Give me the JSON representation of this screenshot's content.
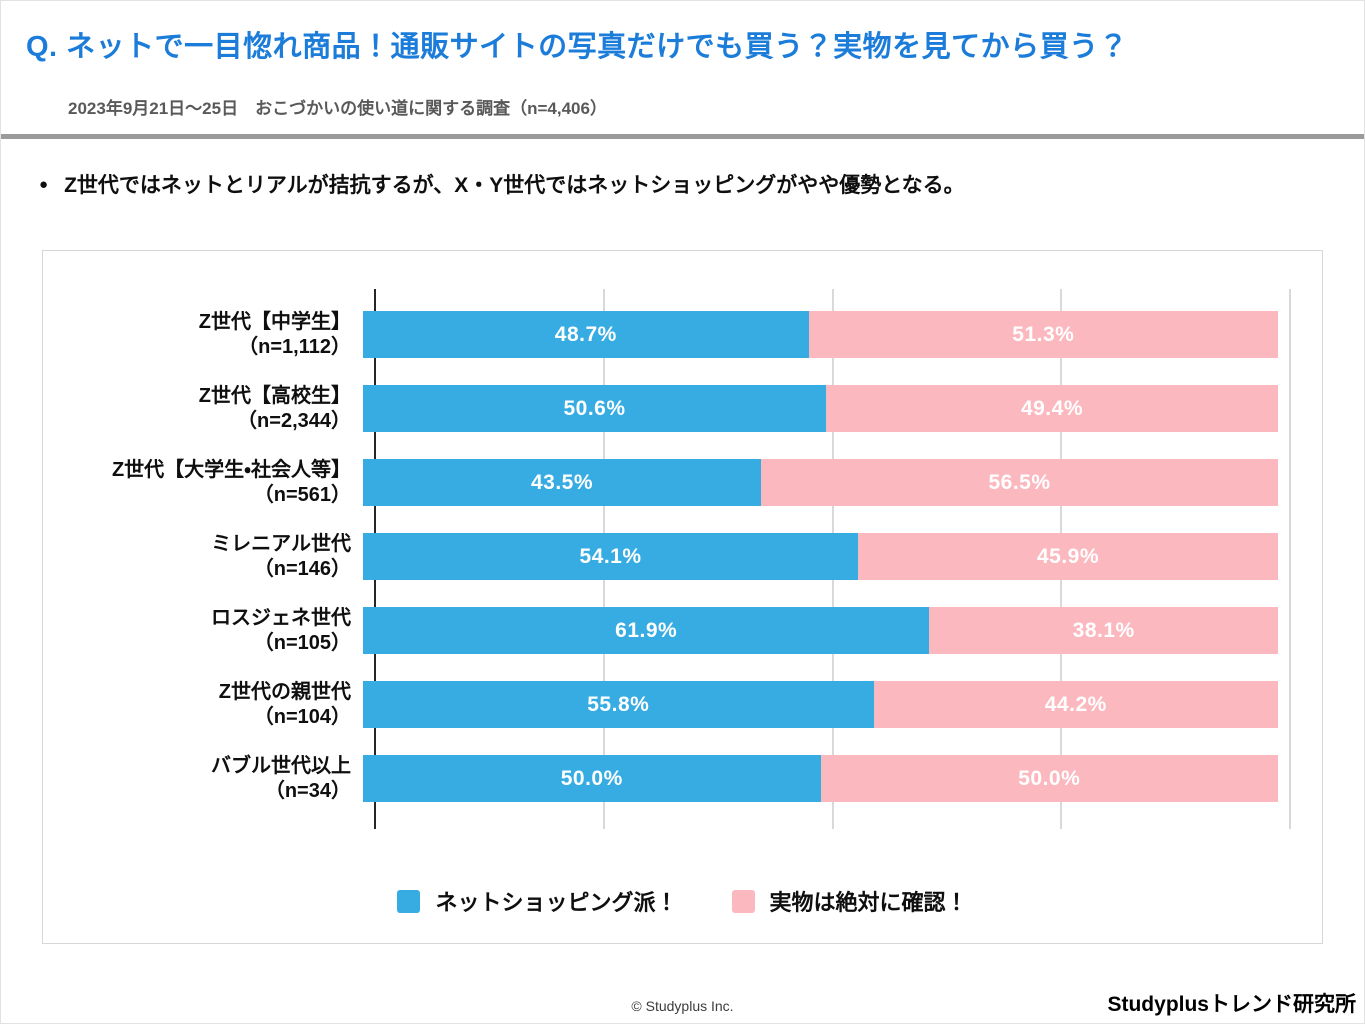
{
  "header": {
    "title": "Q. ネットで一目惚れ商品！通販サイトの写真だけでも買う？実物を見てから買う？",
    "subtitle": "2023年9月21日～25日　おこづかいの使い道に関する調査（n=4,406）"
  },
  "summary": {
    "bullet": "●",
    "text": "Z世代ではネットとリアルが拮抗するが、X・Y世代ではネットショッピングがやや優勢となる。"
  },
  "chart_data": {
    "type": "bar",
    "orientation": "horizontal-stacked",
    "categories": [
      "Z世代【中学生】",
      "Z世代【高校生】",
      "Z世代【大学生・社会人等】",
      "ミレニアル世代",
      "ロスジェネ世代",
      "Z世代の親世代",
      "バブル世代以上"
    ],
    "sample_sizes": [
      "（n=1,112）",
      "（n=2,344）",
      "（n=561）",
      "（n=146）",
      "（n=105）",
      "（n=104）",
      "（n=34）"
    ],
    "series": [
      {
        "name": "ネットショッピング派！",
        "color": "#36ace2",
        "values": [
          48.7,
          50.6,
          43.5,
          54.1,
          61.9,
          55.8,
          50.0
        ]
      },
      {
        "name": "実物は絶対に確認！",
        "color": "#fbb9bf",
        "values": [
          51.3,
          49.4,
          56.5,
          45.9,
          38.1,
          44.2,
          50.0
        ]
      }
    ],
    "value_suffix": "%",
    "xlim": [
      0,
      100
    ],
    "gridlines_percent": [
      0,
      25,
      50,
      75,
      100
    ],
    "grid": true,
    "legend_position": "bottom",
    "value_label_color": "#ffffff"
  },
  "footer": {
    "copyright": "© Studyplus Inc.",
    "brand": "Studyplusトレンド研究所"
  },
  "colors": {
    "title_accent": "#1b7cd9",
    "subtitle_gray": "#595959",
    "divider_gray": "#9b9b9b",
    "panel_border": "#d7d7d7",
    "gridline": "#d9d9d9",
    "axis": "#262626"
  }
}
